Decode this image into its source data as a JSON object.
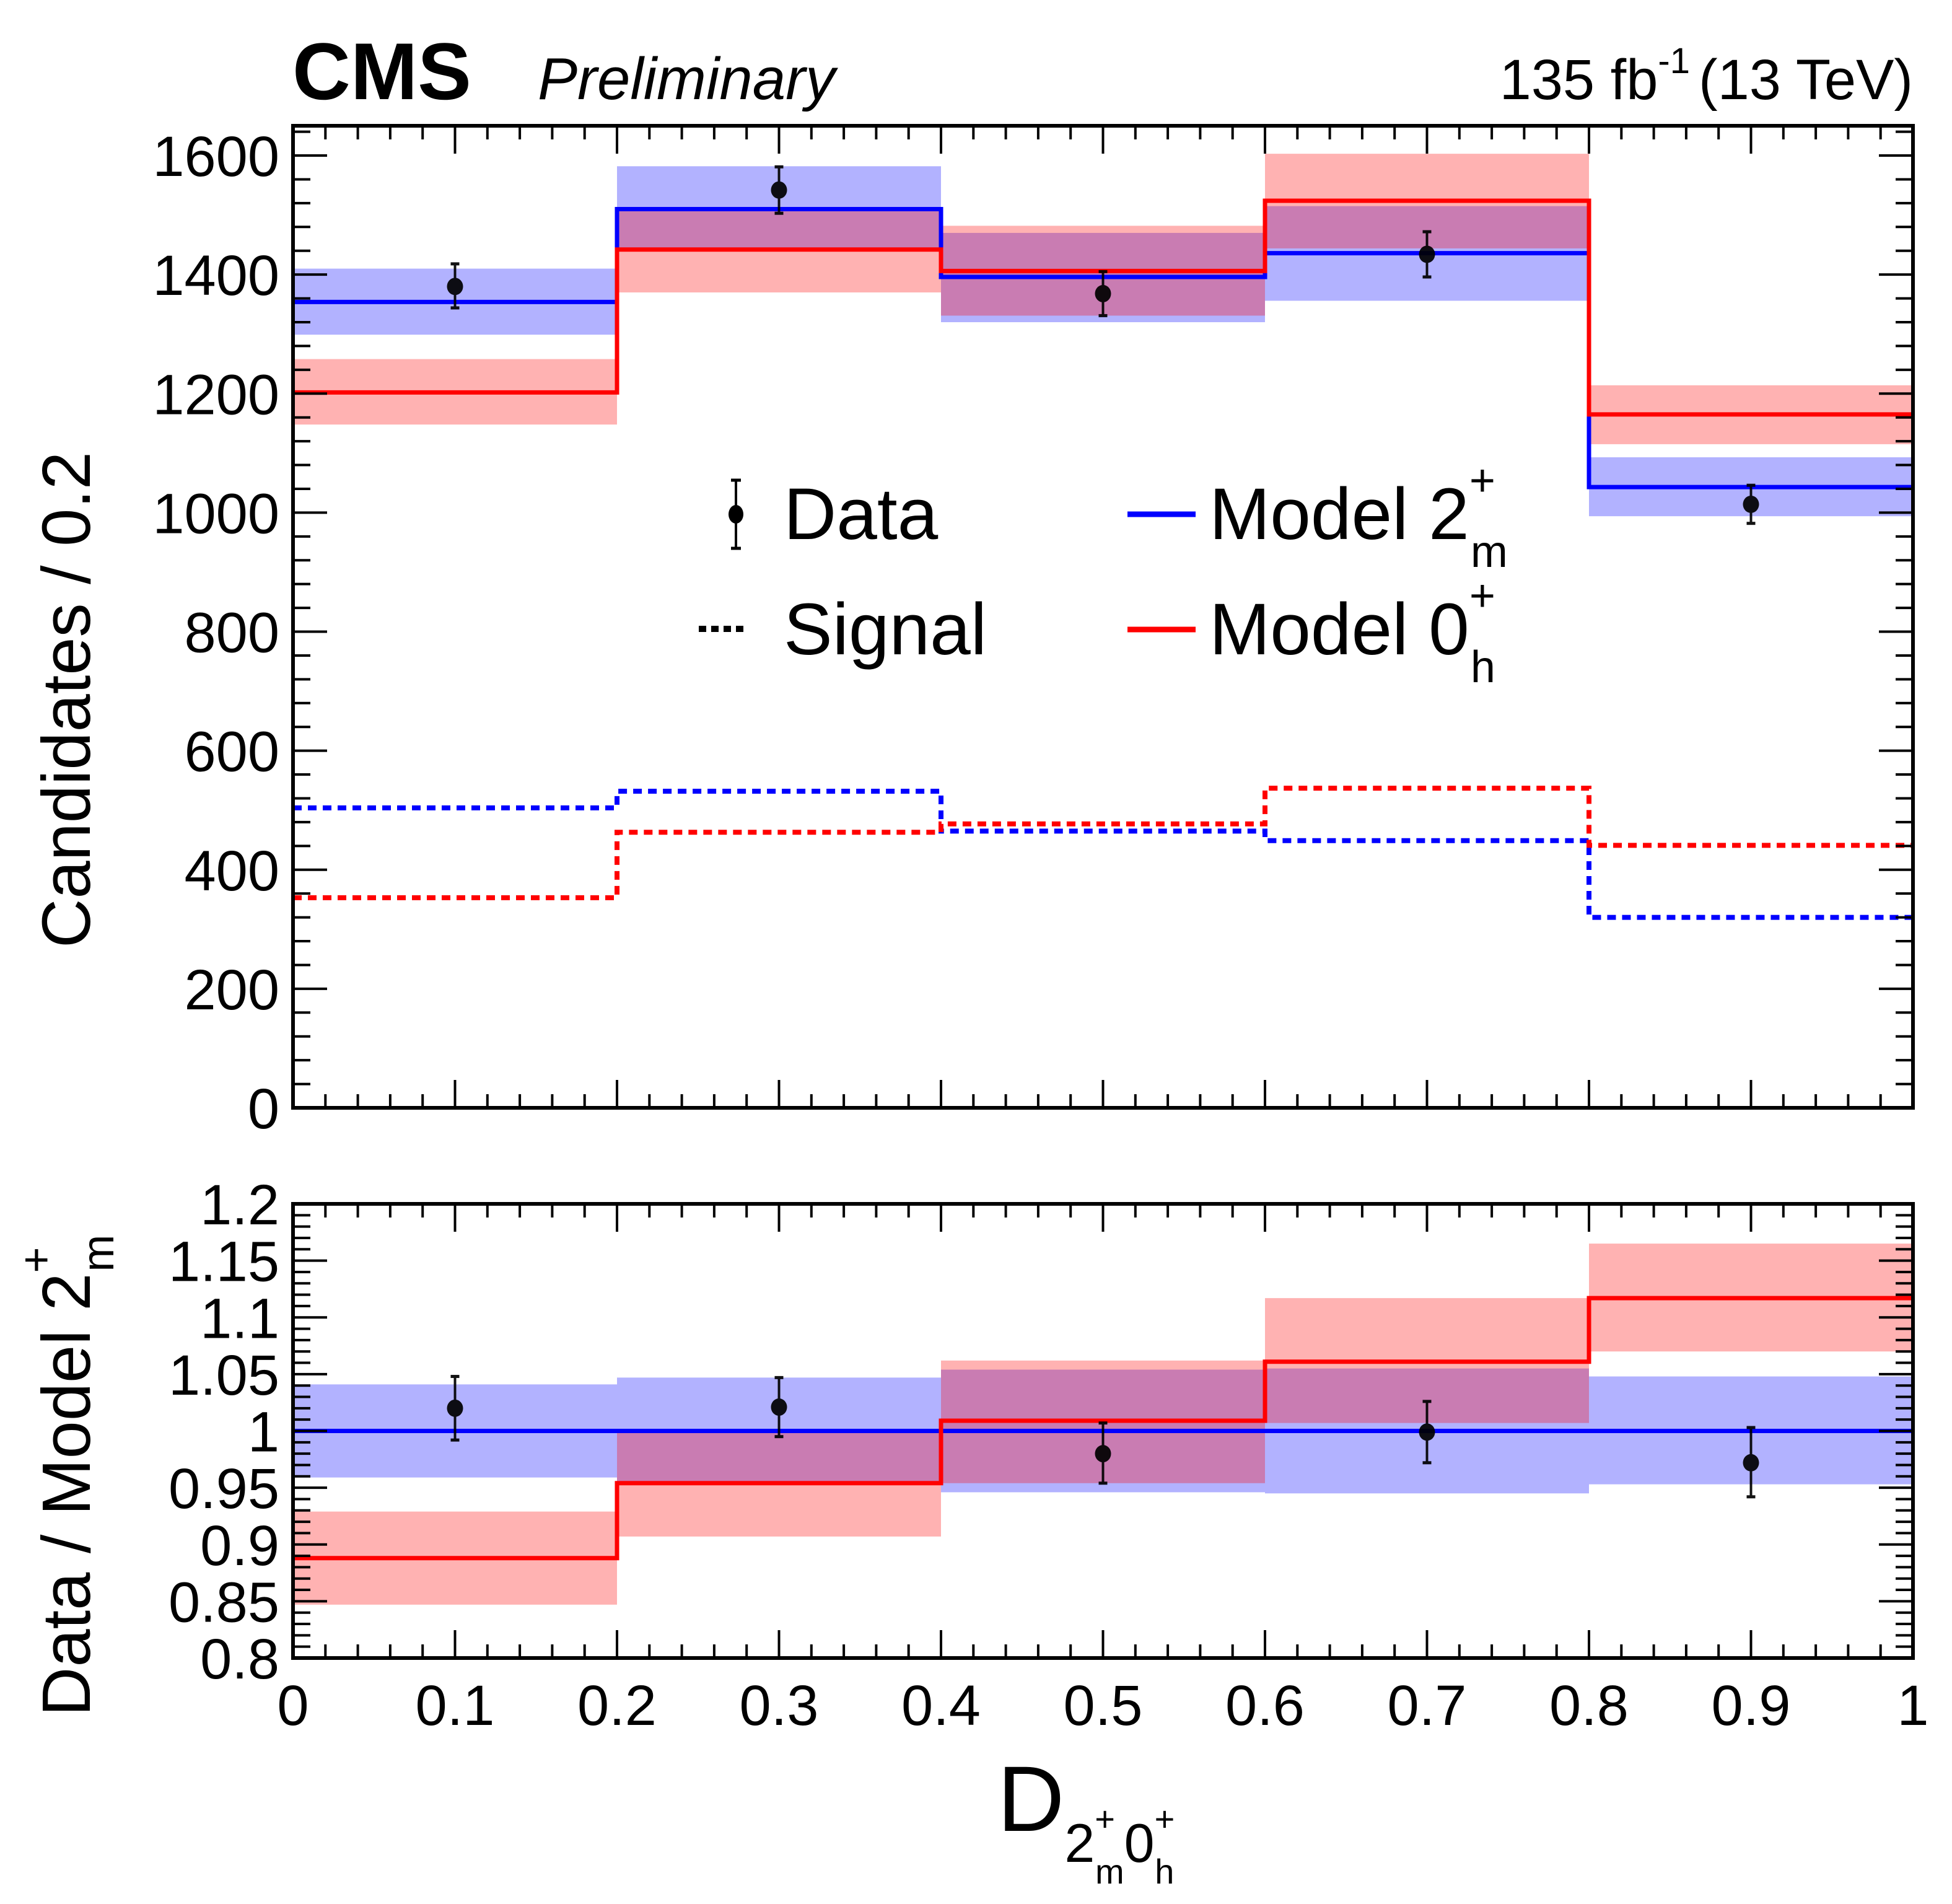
{
  "header": {
    "experiment": "CMS",
    "status": "Preliminary",
    "lumi_value": "135 fb",
    "lumi_exponent": "-1",
    "energy": "(13 TeV)"
  },
  "colors": {
    "data": "#000000",
    "model_2m": "#0000ff",
    "model_0h": "#ff0000",
    "band_2m": "#0000ff",
    "band_0h": "#ff0000",
    "band_opacity": 0.3
  },
  "legend": {
    "data": "Data",
    "signal": "Signal",
    "model_2m_main": "Model 2",
    "model_2m_sup": "+",
    "model_2m_sub": "m",
    "model_0h_main": "Model 0",
    "model_0h_sup": "+",
    "model_0h_sub": "h"
  },
  "axes": {
    "upper_ylabel": "Candidates / 0.2",
    "lower_ylabel_main": "Data / Model 2",
    "lower_ylabel_sup": "+",
    "lower_ylabel_sub": "m",
    "xlabel_main": "D",
    "xlabel_sub1": "2",
    "xlabel_sub1_sup": "+",
    "xlabel_sub1_sub": "m",
    "xlabel_sub2": "0",
    "xlabel_sub2_sup": "+",
    "xlabel_sub2_sub": "h"
  },
  "chart_data": [
    {
      "type": "bar",
      "panel": "upper",
      "title": "",
      "xlabel": "",
      "ylabel": "Candidates / 0.2",
      "xlim": [
        0,
        1
      ],
      "ylim": [
        0,
        1650
      ],
      "x_ticks": [
        0,
        0.1,
        0.2,
        0.3,
        0.4,
        0.5,
        0.6,
        0.7,
        0.8,
        0.9,
        1
      ],
      "y_ticks": [
        0,
        200,
        400,
        600,
        800,
        1000,
        1200,
        1400,
        1600
      ],
      "y_tick_labels": [
        "0",
        "200",
        "400",
        "600",
        "800",
        "1000",
        "1200",
        "1400",
        "1600"
      ],
      "bin_edges": [
        0,
        0.2,
        0.4,
        0.6,
        0.8,
        1.0
      ],
      "legend_position": "center",
      "series": [
        {
          "name": "Data",
          "kind": "points",
          "x": [
            0.1,
            0.3,
            0.5,
            0.7,
            0.9
          ],
          "values": [
            1380,
            1542,
            1368,
            1434,
            1014
          ],
          "err_low": [
            36,
            39,
            37,
            38,
            32
          ],
          "err_high": [
            38,
            39,
            37,
            38,
            32
          ]
        },
        {
          "name": "Model 2m+",
          "kind": "step",
          "values": [
            1354,
            1510,
            1396,
            1436,
            1043
          ],
          "band_low": [
            1299,
            1440,
            1320,
            1356,
            994
          ],
          "band_high": [
            1410,
            1582,
            1470,
            1515,
            1093
          ]
        },
        {
          "name": "Model 0h+",
          "kind": "step",
          "values": [
            1202,
            1442,
            1406,
            1524,
            1165
          ],
          "band_low": [
            1148,
            1370,
            1331,
            1444,
            1115
          ],
          "band_high": [
            1258,
            1507,
            1482,
            1603,
            1214
          ]
        },
        {
          "name": "Signal 2m+",
          "kind": "dashed-step",
          "values": [
            504,
            532,
            465,
            449,
            320
          ]
        },
        {
          "name": "Signal 0h+",
          "kind": "dashed-step",
          "values": [
            353,
            463,
            477,
            537,
            441
          ]
        }
      ]
    },
    {
      "type": "bar",
      "panel": "lower",
      "title": "",
      "xlabel": "D_{2m+ 0h+}",
      "ylabel": "Data / Model 2m+",
      "xlim": [
        0,
        1
      ],
      "ylim": [
        0.8,
        1.2
      ],
      "x_ticks": [
        0,
        0.1,
        0.2,
        0.3,
        0.4,
        0.5,
        0.6,
        0.7,
        0.8,
        0.9,
        1
      ],
      "x_tick_labels": [
        "0",
        "0.1",
        "0.2",
        "0.3",
        "0.4",
        "0.5",
        "0.6",
        "0.7",
        "0.8",
        "0.9",
        "1"
      ],
      "y_ticks": [
        0.8,
        0.85,
        0.9,
        0.95,
        1,
        1.05,
        1.1,
        1.15,
        1.2
      ],
      "y_tick_labels": [
        "0.8",
        "0.85",
        "0.9",
        "0.95",
        "1",
        "1.05",
        "1.1",
        "1.15",
        "1.2"
      ],
      "bin_edges": [
        0,
        0.2,
        0.4,
        0.6,
        0.8,
        1.0
      ],
      "series": [
        {
          "name": "Data",
          "kind": "points",
          "x": [
            0.1,
            0.3,
            0.5,
            0.7,
            0.9
          ],
          "values": [
            1.02,
            1.021,
            0.98,
            0.999,
            0.972
          ],
          "err_low": [
            0.028,
            0.026,
            0.026,
            0.027,
            0.03
          ],
          "err_high": [
            0.028,
            0.026,
            0.027,
            0.027,
            0.031
          ]
        },
        {
          "name": "Model 2m+",
          "kind": "step",
          "values": [
            1.0,
            1.0,
            1.0,
            1.0,
            1.0
          ],
          "band_low": [
            0.959,
            0.954,
            0.946,
            0.945,
            0.953
          ],
          "band_high": [
            1.041,
            1.047,
            1.054,
            1.055,
            1.048
          ]
        },
        {
          "name": "Model 0h+",
          "kind": "step",
          "values": [
            0.888,
            0.954,
            1.009,
            1.061,
            1.117
          ],
          "band_low": [
            0.847,
            0.907,
            0.954,
            1.007,
            1.07
          ],
          "band_high": [
            0.929,
            1.0,
            1.062,
            1.117,
            1.165
          ]
        }
      ]
    }
  ]
}
